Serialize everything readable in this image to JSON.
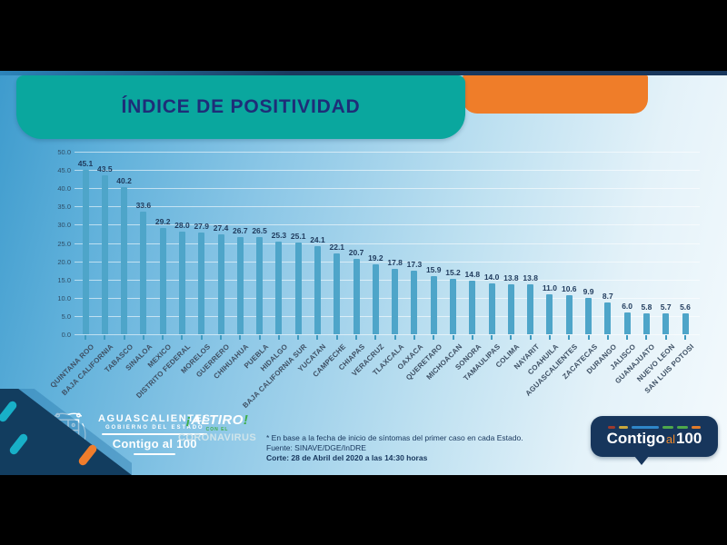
{
  "header": {
    "title": "ÍNDICE DE POSITIVIDAD"
  },
  "chart_data": {
    "type": "bar",
    "title": "ÍNDICE DE POSITIVIDAD",
    "categories": [
      "QUINTANA ROO",
      "BAJA CALIFORNIA",
      "TABASCO",
      "SINALOA",
      "MEXICO",
      "DISTRITO FEDERAL",
      "MORELOS",
      "GUERRERO",
      "CHIHUAHUA",
      "PUEBLA",
      "HIDALGO",
      "BAJA CALIFORNIA SUR",
      "YUCATAN",
      "CAMPECHE",
      "CHIAPAS",
      "VERACRUZ",
      "TLAXCALA",
      "OAXACA",
      "QUERETARO",
      "MICHOACAN",
      "SONORA",
      "TAMAULIPAS",
      "COLIMA",
      "NAYARIT",
      "COAHUILA",
      "AGUASCALIENTES",
      "ZACATECAS",
      "DURANGO",
      "JALISCO",
      "GUANAJUATO",
      "NUEVO LEON",
      "SAN LUIS POTOSI"
    ],
    "values": [
      45.1,
      43.5,
      40.2,
      33.6,
      29.2,
      28.0,
      27.9,
      27.4,
      26.7,
      26.5,
      25.3,
      25.1,
      24.1,
      22.1,
      20.7,
      19.2,
      17.8,
      17.3,
      15.9,
      15.2,
      14.8,
      14.0,
      13.8,
      13.8,
      11.0,
      10.6,
      9.9,
      8.7,
      6.0,
      5.8,
      5.7,
      5.6
    ],
    "xlabel": "",
    "ylabel": "",
    "ylim": [
      0,
      50
    ],
    "ytick_step": 5,
    "grid": true,
    "legend": "none",
    "bar_color": "#4EA5C9",
    "value_labels_shown": true
  },
  "footer": {
    "gov_logo": {
      "line1": "AGUASCALIENTES",
      "line2": "GOBIERNO DEL ESTADO",
      "line3": "Contigo al 100"
    },
    "altiro_logo": {
      "excl_open": "¡",
      "word": "ALTIRO",
      "excl_close": "!",
      "line2": "CON EL",
      "line3": "CORONAVIRUS"
    },
    "notes": {
      "line1": "* En base a la fecha de inicio de síntomas del primer caso en cada Estado.",
      "line2": "Fuente: SINAVE/DGE/InDRE",
      "line3": "Corte: 28 de Abril del 2020 a las 14:30 horas"
    },
    "badge": {
      "text_main": "Contigo",
      "text_mid": "al",
      "text_num": "100"
    }
  },
  "colors": {
    "title_box": "#0AA79E",
    "accent_orange": "#EF7D29",
    "navy": "#17365C",
    "title_text": "#1E2D78",
    "bar": "#4EA5C9",
    "badge_dashes": [
      "#9C3B2E",
      "#C9A63B",
      "#2F86C8",
      "#4EA84B",
      "#4EA84B",
      "#E07B2A"
    ]
  }
}
